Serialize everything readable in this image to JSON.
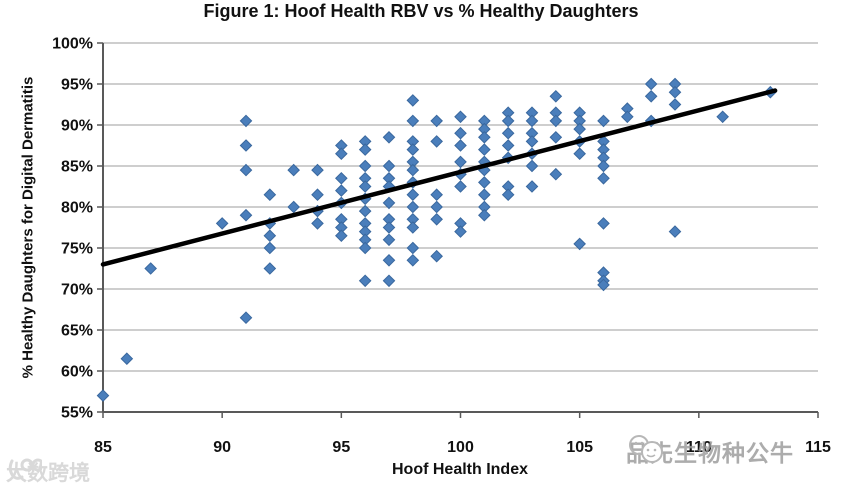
{
  "title": "Figure 1: Hoof Health RBV vs % Healthy Daughters",
  "chart_data": {
    "type": "scatter",
    "title": "Figure 1: Hoof Health RBV vs % Healthy Daughters",
    "xlabel": "Hoof Health Index",
    "ylabel": "% Healthy Daughters for Digital Dermatitis",
    "xlim": [
      85,
      115
    ],
    "ylim": [
      55,
      100
    ],
    "x_ticks": [
      85,
      90,
      95,
      100,
      105,
      110,
      115
    ],
    "y_ticks": [
      100,
      95,
      90,
      85,
      80,
      75,
      70,
      65,
      60,
      55
    ],
    "y_tick_suffix": "%",
    "grid": "horizontal",
    "legend": "none",
    "marker": "diamond",
    "colors": {
      "marker": "#4a7ebb",
      "marker_edge": "#3a689e",
      "trend": "#000000",
      "grid": "#9e9e9e",
      "axis": "#595959",
      "text": "#111111"
    },
    "trendline": {
      "x1": 85,
      "y1": 73,
      "x2": 113.2,
      "y2": 94.2,
      "width": 4.5
    },
    "points": [
      [
        85,
        57
      ],
      [
        86,
        61.5
      ],
      [
        87,
        72.5
      ],
      [
        90,
        78
      ],
      [
        91,
        90.5
      ],
      [
        91,
        87.5
      ],
      [
        91,
        84.5
      ],
      [
        91,
        79
      ],
      [
        91,
        66.5
      ],
      [
        92,
        81.5
      ],
      [
        92,
        78
      ],
      [
        92,
        76.5
      ],
      [
        92,
        75
      ],
      [
        92,
        72.5
      ],
      [
        93,
        84.5
      ],
      [
        93,
        80
      ],
      [
        94,
        84.5
      ],
      [
        94,
        81.5
      ],
      [
        94,
        79.5
      ],
      [
        94,
        78
      ],
      [
        95,
        87.5
      ],
      [
        95,
        86.5
      ],
      [
        95,
        83.5
      ],
      [
        95,
        82
      ],
      [
        95,
        80.5
      ],
      [
        95,
        78.5
      ],
      [
        95,
        77.5
      ],
      [
        95,
        76.5
      ],
      [
        96,
        88
      ],
      [
        96,
        87
      ],
      [
        96,
        85
      ],
      [
        96,
        83.5
      ],
      [
        96,
        82.5
      ],
      [
        96,
        81
      ],
      [
        96,
        79.5
      ],
      [
        96,
        78
      ],
      [
        96,
        77
      ],
      [
        96,
        76
      ],
      [
        96,
        75
      ],
      [
        96,
        71
      ],
      [
        97,
        88.5
      ],
      [
        97,
        85
      ],
      [
        97,
        83.5
      ],
      [
        97,
        82.5
      ],
      [
        97,
        80.5
      ],
      [
        97,
        78.5
      ],
      [
        97,
        77.5
      ],
      [
        97,
        76
      ],
      [
        97,
        73.5
      ],
      [
        97,
        71
      ],
      [
        98,
        93
      ],
      [
        98,
        90.5
      ],
      [
        98,
        88
      ],
      [
        98,
        87
      ],
      [
        98,
        85.5
      ],
      [
        98,
        84.5
      ],
      [
        98,
        83
      ],
      [
        98,
        81.5
      ],
      [
        98,
        80
      ],
      [
        98,
        78.5
      ],
      [
        98,
        77.5
      ],
      [
        98,
        75
      ],
      [
        98,
        73.5
      ],
      [
        99,
        90.5
      ],
      [
        99,
        88
      ],
      [
        99,
        81.5
      ],
      [
        99,
        80
      ],
      [
        99,
        78.5
      ],
      [
        99,
        74
      ],
      [
        100,
        91
      ],
      [
        100,
        89
      ],
      [
        100,
        87.5
      ],
      [
        100,
        85.5
      ],
      [
        100,
        84
      ],
      [
        100,
        82.5
      ],
      [
        100,
        78
      ],
      [
        100,
        77
      ],
      [
        101,
        90.5
      ],
      [
        101,
        89.5
      ],
      [
        101,
        88.5
      ],
      [
        101,
        87
      ],
      [
        101,
        85.5
      ],
      [
        101,
        84.5
      ],
      [
        101,
        83
      ],
      [
        101,
        81.5
      ],
      [
        101,
        80
      ],
      [
        101,
        79
      ],
      [
        102,
        91.5
      ],
      [
        102,
        90.5
      ],
      [
        102,
        89
      ],
      [
        102,
        87.5
      ],
      [
        102,
        86
      ],
      [
        102,
        82.5
      ],
      [
        102,
        81.5
      ],
      [
        103,
        91.5
      ],
      [
        103,
        90.5
      ],
      [
        103,
        89
      ],
      [
        103,
        88
      ],
      [
        103,
        86.5
      ],
      [
        103,
        85
      ],
      [
        103,
        82.5
      ],
      [
        104,
        93.5
      ],
      [
        104,
        91.5
      ],
      [
        104,
        90.5
      ],
      [
        104,
        88.5
      ],
      [
        104,
        84
      ],
      [
        105,
        91.5
      ],
      [
        105,
        90.5
      ],
      [
        105,
        89.5
      ],
      [
        105,
        88
      ],
      [
        105,
        86.5
      ],
      [
        105,
        75.5
      ],
      [
        106,
        90.5
      ],
      [
        106,
        88
      ],
      [
        106,
        87
      ],
      [
        106,
        86
      ],
      [
        106,
        85
      ],
      [
        106,
        83.5
      ],
      [
        106,
        78
      ],
      [
        106,
        72
      ],
      [
        106,
        71
      ],
      [
        106,
        70.5
      ],
      [
        107,
        92
      ],
      [
        107,
        91
      ],
      [
        108,
        95
      ],
      [
        108,
        93.5
      ],
      [
        108,
        90.5
      ],
      [
        109,
        95
      ],
      [
        109,
        94
      ],
      [
        109,
        92.5
      ],
      [
        109,
        77
      ],
      [
        111,
        91
      ],
      [
        113,
        94
      ]
    ]
  },
  "watermarks": {
    "left": {
      "logo": "100-smiley-logo",
      "text": "大数跨境",
      "color": "#d9d9d9"
    },
    "right": {
      "logo": "chat-bubbles-logo",
      "text": "品先生物种公牛",
      "color": "#9a9a9a"
    }
  }
}
